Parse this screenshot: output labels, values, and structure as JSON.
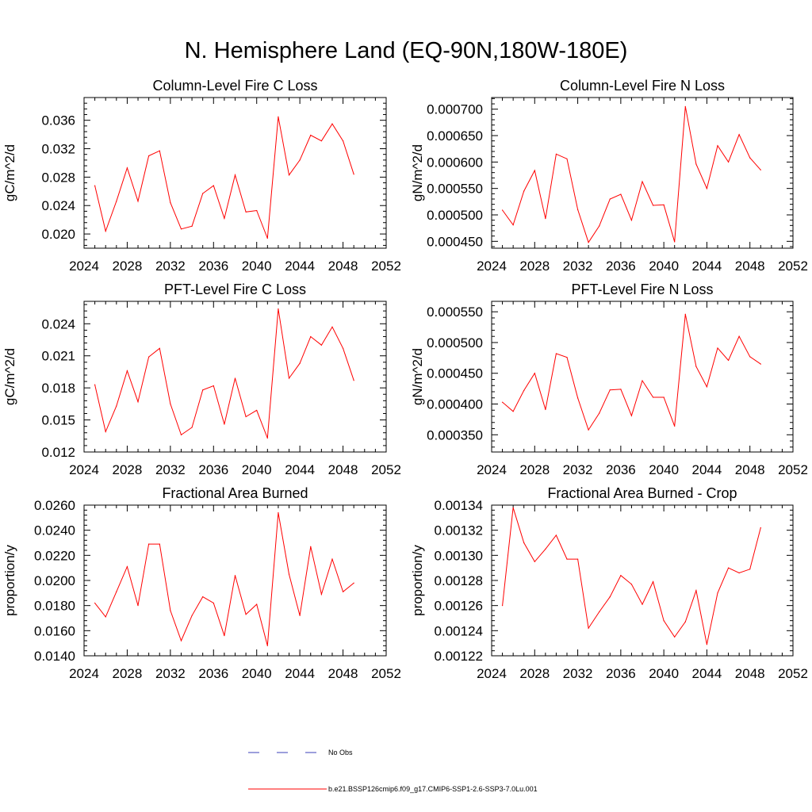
{
  "title": "N. Hemisphere Land (EQ-90N,180W-180E)",
  "legend": {
    "obs_label": "No Obs",
    "case_label": "b.e21.BSSP126cmip6.f09_g17.CMIP6-SSP1-2.6-SSP3-7.0Lu.001",
    "obs_color": "#3b3fb8",
    "case_color": "#ff0000"
  },
  "chart_data": [
    {
      "type": "line",
      "title": "Column-Level Fire C Loss",
      "ylabel": "gC/m^2/d",
      "xlim": [
        2024,
        2052
      ],
      "ylim": [
        0.018,
        0.0392
      ],
      "xticks": [
        "2024",
        "2028",
        "2032",
        "2036",
        "2040",
        "2044",
        "2048",
        "2052"
      ],
      "yticks": [
        {
          "v": 0.02,
          "label": "0.020"
        },
        {
          "v": 0.024,
          "label": "0.024"
        },
        {
          "v": 0.028,
          "label": "0.028"
        },
        {
          "v": 0.032,
          "label": "0.032"
        },
        {
          "v": 0.036,
          "label": "0.036"
        }
      ],
      "x": [
        2025,
        2026,
        2027,
        2028,
        2029,
        2030,
        2031,
        2032,
        2033,
        2034,
        2035,
        2036,
        2037,
        2038,
        2039,
        2040,
        2041,
        2042,
        2043,
        2044,
        2045,
        2046,
        2047,
        2048,
        2049
      ],
      "values": [
        0.0268,
        0.0204,
        0.0246,
        0.0293,
        0.0246,
        0.031,
        0.0317,
        0.0244,
        0.0207,
        0.0211,
        0.0257,
        0.0268,
        0.0222,
        0.0283,
        0.0231,
        0.0233,
        0.0194,
        0.0365,
        0.0283,
        0.0304,
        0.0339,
        0.0331,
        0.0355,
        0.0331,
        0.0284
      ]
    },
    {
      "type": "line",
      "title": "Column-Level Fire N Loss",
      "ylabel": "gN/m^2/d",
      "xlim": [
        2024,
        2052
      ],
      "ylim": [
        0.000437,
        0.000722
      ],
      "xticks": [
        "2024",
        "2028",
        "2032",
        "2036",
        "2040",
        "2044",
        "2048",
        "2052"
      ],
      "yticks": [
        {
          "v": 0.00045,
          "label": "0.000450"
        },
        {
          "v": 0.0005,
          "label": "0.000500"
        },
        {
          "v": 0.00055,
          "label": "0.000550"
        },
        {
          "v": 0.0006,
          "label": "0.000600"
        },
        {
          "v": 0.00065,
          "label": "0.000650"
        },
        {
          "v": 0.0007,
          "label": "0.000700"
        }
      ],
      "x": [
        2025,
        2026,
        2027,
        2028,
        2029,
        2030,
        2031,
        2032,
        2033,
        2034,
        2035,
        2036,
        2037,
        2038,
        2039,
        2040,
        2041,
        2042,
        2043,
        2044,
        2045,
        2046,
        2047,
        2048,
        2049
      ],
      "values": [
        0.000509,
        0.000481,
        0.000545,
        0.000584,
        0.000493,
        0.000615,
        0.000606,
        0.00051,
        0.000448,
        0.000479,
        0.00053,
        0.000539,
        0.00049,
        0.000563,
        0.000518,
        0.000519,
        0.000449,
        0.000705,
        0.000596,
        0.00055,
        0.000631,
        0.0006,
        0.000652,
        0.000608,
        0.000585
      ]
    },
    {
      "type": "line",
      "title": "PFT-Level Fire C Loss",
      "ylabel": "gC/m^2/d",
      "xlim": [
        2024,
        2052
      ],
      "ylim": [
        0.012,
        0.0261
      ],
      "xticks": [
        "2024",
        "2028",
        "2032",
        "2036",
        "2040",
        "2044",
        "2048",
        "2052"
      ],
      "yticks": [
        {
          "v": 0.012,
          "label": "0.012"
        },
        {
          "v": 0.015,
          "label": "0.015"
        },
        {
          "v": 0.018,
          "label": "0.018"
        },
        {
          "v": 0.021,
          "label": "0.021"
        },
        {
          "v": 0.024,
          "label": "0.024"
        }
      ],
      "x": [
        2025,
        2026,
        2027,
        2028,
        2029,
        2030,
        2031,
        2032,
        2033,
        2034,
        2035,
        2036,
        2037,
        2038,
        2039,
        2040,
        2041,
        2042,
        2043,
        2044,
        2045,
        2046,
        2047,
        2048,
        2049
      ],
      "values": [
        0.0183,
        0.0139,
        0.0163,
        0.0196,
        0.0167,
        0.0209,
        0.0217,
        0.0165,
        0.0136,
        0.0143,
        0.0178,
        0.0182,
        0.0146,
        0.0189,
        0.0153,
        0.0159,
        0.0133,
        0.0254,
        0.0189,
        0.0203,
        0.0228,
        0.022,
        0.0237,
        0.0217,
        0.0187
      ]
    },
    {
      "type": "line",
      "title": "PFT-Level Fire N Loss",
      "ylabel": "gN/m^2/d",
      "xlim": [
        2024,
        2052
      ],
      "ylim": [
        0.000322,
        0.000567
      ],
      "xticks": [
        "2024",
        "2028",
        "2032",
        "2036",
        "2040",
        "2044",
        "2048",
        "2052"
      ],
      "yticks": [
        {
          "v": 0.00035,
          "label": "0.000350"
        },
        {
          "v": 0.0004,
          "label": "0.000400"
        },
        {
          "v": 0.00045,
          "label": "0.000450"
        },
        {
          "v": 0.0005,
          "label": "0.000500"
        },
        {
          "v": 0.00055,
          "label": "0.000550"
        }
      ],
      "x": [
        2025,
        2026,
        2027,
        2028,
        2029,
        2030,
        2031,
        2032,
        2033,
        2034,
        2035,
        2036,
        2037,
        2038,
        2039,
        2040,
        2041,
        2042,
        2043,
        2044,
        2045,
        2046,
        2047,
        2048,
        2049
      ],
      "values": [
        0.000403,
        0.000388,
        0.000422,
        0.00045,
        0.000391,
        0.000482,
        0.000476,
        0.00041,
        0.000358,
        0.000385,
        0.000423,
        0.000424,
        0.000381,
        0.000438,
        0.000411,
        0.000411,
        0.000364,
        0.000546,
        0.000461,
        0.000428,
        0.000491,
        0.000471,
        0.00051,
        0.000477,
        0.000465
      ]
    },
    {
      "type": "line",
      "title": "Fractional Area Burned",
      "ylabel": "proportion/y",
      "xlim": [
        2024,
        2052
      ],
      "ylim": [
        0.014,
        0.026
      ],
      "xticks": [
        "2024",
        "2028",
        "2032",
        "2036",
        "2040",
        "2044",
        "2048",
        "2052"
      ],
      "yticks": [
        {
          "v": 0.014,
          "label": "0.0140"
        },
        {
          "v": 0.016,
          "label": "0.0160"
        },
        {
          "v": 0.018,
          "label": "0.0180"
        },
        {
          "v": 0.02,
          "label": "0.0200"
        },
        {
          "v": 0.022,
          "label": "0.0220"
        },
        {
          "v": 0.024,
          "label": "0.0240"
        },
        {
          "v": 0.026,
          "label": "0.0260"
        }
      ],
      "x": [
        2025,
        2026,
        2027,
        2028,
        2029,
        2030,
        2031,
        2032,
        2033,
        2034,
        2035,
        2036,
        2037,
        2038,
        2039,
        2040,
        2041,
        2042,
        2043,
        2044,
        2045,
        2046,
        2047,
        2048,
        2049
      ],
      "values": [
        0.0182,
        0.0171,
        0.0191,
        0.0211,
        0.018,
        0.0229,
        0.0229,
        0.0176,
        0.0152,
        0.0172,
        0.0187,
        0.0182,
        0.0156,
        0.0204,
        0.0173,
        0.0181,
        0.0148,
        0.0254,
        0.0205,
        0.0172,
        0.0227,
        0.0189,
        0.0217,
        0.0191,
        0.0198
      ]
    },
    {
      "type": "line",
      "title": "Fractional Area Burned - Crop",
      "ylabel": "proportion/y",
      "xlim": [
        2024,
        2052
      ],
      "ylim": [
        0.00122,
        0.00134
      ],
      "xticks": [
        "2024",
        "2028",
        "2032",
        "2036",
        "2040",
        "2044",
        "2048",
        "2052"
      ],
      "yticks": [
        {
          "v": 0.00122,
          "label": "0.00122"
        },
        {
          "v": 0.00124,
          "label": "0.00124"
        },
        {
          "v": 0.00126,
          "label": "0.00126"
        },
        {
          "v": 0.00128,
          "label": "0.00128"
        },
        {
          "v": 0.0013,
          "label": "0.00130"
        },
        {
          "v": 0.00132,
          "label": "0.00132"
        },
        {
          "v": 0.00134,
          "label": "0.00134"
        }
      ],
      "x": [
        2025,
        2026,
        2027,
        2028,
        2029,
        2030,
        2031,
        2032,
        2033,
        2034,
        2035,
        2036,
        2037,
        2038,
        2039,
        2040,
        2041,
        2042,
        2043,
        2044,
        2045,
        2046,
        2047,
        2048,
        2049
      ],
      "values": [
        0.00126,
        0.001338,
        0.00131,
        0.001295,
        0.001305,
        0.001316,
        0.001297,
        0.001297,
        0.001242,
        0.001255,
        0.001267,
        0.001284,
        0.001277,
        0.001261,
        0.001279,
        0.001248,
        0.001235,
        0.001247,
        0.001272,
        0.001229,
        0.00127,
        0.00129,
        0.001286,
        0.001289,
        0.001322
      ]
    }
  ]
}
